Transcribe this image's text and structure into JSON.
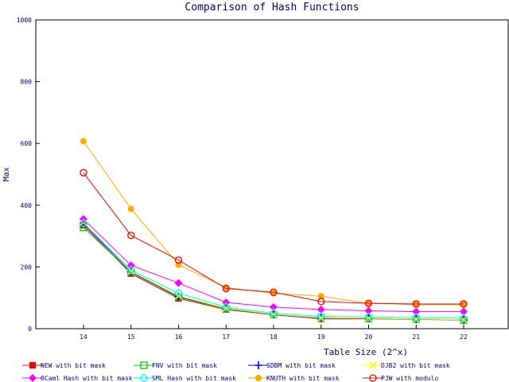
{
  "chart_data": {
    "type": "line",
    "title": "Comparison of Hash Functions",
    "xlabel": "Table Size (2^x)",
    "ylabel": "Max",
    "categories": [
      "14",
      "15",
      "16",
      "17",
      "18",
      "19",
      "20",
      "21",
      "22"
    ],
    "ylim": [
      0,
      1000
    ],
    "yticks": [
      "0",
      "200",
      "400",
      "600",
      "800",
      "1000"
    ],
    "grid": false,
    "legend_position": "bottom",
    "series": [
      {
        "name": "NEW with bit mask",
        "color": "#ff0000",
        "marker": "filled-square",
        "values": [
          335,
          178,
          98,
          62,
          45,
          32,
          32,
          30,
          28
        ]
      },
      {
        "name": "FNV with bit mask",
        "color": "#00cc00",
        "marker": "open-square",
        "values": [
          328,
          182,
          102,
          64,
          46,
          36,
          33,
          31,
          28
        ]
      },
      {
        "name": "SDBM with bit mask",
        "color": "#0000ff",
        "marker": "plus",
        "values": [
          340,
          184,
          104,
          66,
          46,
          34,
          34,
          31,
          29
        ]
      },
      {
        "name": "DJB2 with bit mask",
        "color": "#ffff00",
        "marker": "cross",
        "values": [
          345,
          186,
          106,
          66,
          47,
          35,
          34,
          31,
          29
        ]
      },
      {
        "name": "OCaml Hash with bit mask",
        "color": "#ff00ff",
        "marker": "filled-diamond",
        "values": [
          355,
          205,
          148,
          85,
          70,
          62,
          58,
          55,
          55
        ]
      },
      {
        "name": "SML Hash with bit mask",
        "color": "#00ffff",
        "marker": "open-diamond",
        "values": [
          342,
          190,
          115,
          70,
          50,
          40,
          38,
          36,
          34
        ]
      },
      {
        "name": "KNUTH with bit mask",
        "color": "#ffaa00",
        "marker": "filled-circle",
        "values": [
          607,
          388,
          207,
          133,
          115,
          105,
          82,
          78,
          78
        ]
      },
      {
        "name": "PJW with modulo",
        "color": "#ff0000",
        "marker": "open-circle",
        "values": [
          505,
          302,
          222,
          130,
          118,
          88,
          82,
          80,
          80
        ]
      }
    ]
  }
}
